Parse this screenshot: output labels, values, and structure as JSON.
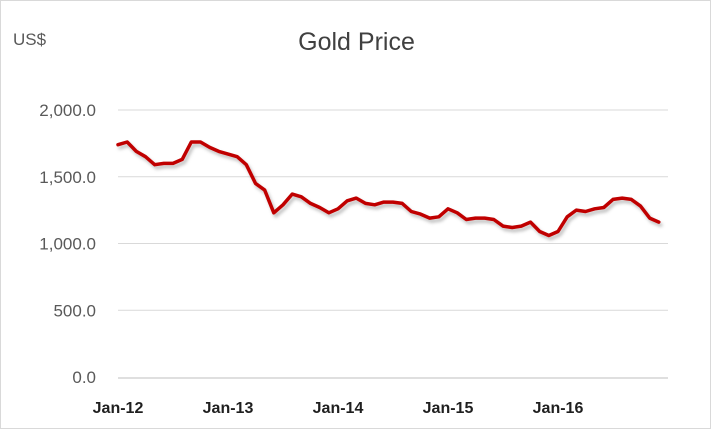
{
  "chart_data": {
    "type": "line",
    "title": "Gold Price",
    "unit_label": "US$",
    "xlabel": "",
    "ylabel": "",
    "ylim": [
      0,
      2000
    ],
    "yticks": [
      "0.0",
      "500.0",
      "1,000.0",
      "1,500.0",
      "2,000.0"
    ],
    "ytick_values": [
      0,
      500,
      1000,
      1500,
      2000
    ],
    "xlim": [
      "2012-01",
      "2016-12"
    ],
    "xticks": [
      "Jan-12",
      "Jan-13",
      "Jan-14",
      "Jan-15",
      "Jan-16"
    ],
    "xtick_dates": [
      "2012-01",
      "2013-01",
      "2014-01",
      "2015-01",
      "2016-01"
    ],
    "grid": true,
    "legend": "none",
    "series": [
      {
        "color": "#c00000",
        "x": [
          "2012-01",
          "2012-02",
          "2012-03",
          "2012-04",
          "2012-05",
          "2012-06",
          "2012-07",
          "2012-08",
          "2012-09",
          "2012-10",
          "2012-11",
          "2012-12",
          "2013-01",
          "2013-02",
          "2013-03",
          "2013-04",
          "2013-05",
          "2013-06",
          "2013-07",
          "2013-08",
          "2013-09",
          "2013-10",
          "2013-11",
          "2013-12",
          "2014-01",
          "2014-02",
          "2014-03",
          "2014-04",
          "2014-05",
          "2014-06",
          "2014-07",
          "2014-08",
          "2014-09",
          "2014-10",
          "2014-11",
          "2014-12",
          "2015-01",
          "2015-02",
          "2015-03",
          "2015-04",
          "2015-05",
          "2015-06",
          "2015-07",
          "2015-08",
          "2015-09",
          "2015-10",
          "2015-11",
          "2015-12",
          "2016-01",
          "2016-02",
          "2016-03",
          "2016-04",
          "2016-05",
          "2016-06",
          "2016-07",
          "2016-08",
          "2016-09",
          "2016-10",
          "2016-11",
          "2016-12"
        ],
        "values": [
          1740,
          1760,
          1690,
          1650,
          1590,
          1600,
          1600,
          1630,
          1760,
          1760,
          1720,
          1690,
          1670,
          1650,
          1590,
          1450,
          1400,
          1230,
          1290,
          1370,
          1350,
          1300,
          1270,
          1230,
          1260,
          1320,
          1340,
          1300,
          1290,
          1310,
          1310,
          1300,
          1240,
          1220,
          1190,
          1200,
          1260,
          1230,
          1180,
          1190,
          1190,
          1180,
          1130,
          1120,
          1130,
          1160,
          1090,
          1060,
          1090,
          1200,
          1250,
          1240,
          1260,
          1270,
          1330,
          1340,
          1330,
          1280,
          1190,
          1160
        ]
      }
    ]
  }
}
